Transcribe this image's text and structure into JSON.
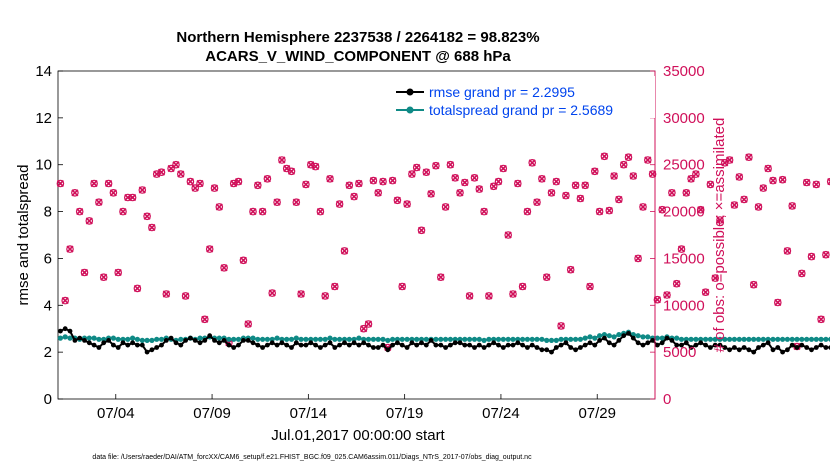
{
  "colors": {
    "rmse": "#000000",
    "spread": "#0f8a86",
    "obs": "#d0105a",
    "legend_text": "#0044ee",
    "axis": "#000000"
  },
  "chart_data": {
    "type": "line",
    "title_line1": "Northern Hemisphere 2237538 / 2264182 = 98.823%",
    "title_line2": "ACARS_V_WIND_COMPONENT @ 688 hPa",
    "ylabel_left": "rmse and totalspread",
    "ylabel_right": "# of obs: o=possible; ×=assimilated",
    "xlabel": "Jul.01,2017 00:00:00 start",
    "footnote": "data file: /Users/raeder/DAI/ATM_forcXX/CAM6_setup/f.e21.FHIST_BGC.f09_025.CAM6assim.011/Diags_NTrS_2017-07/obs_diag_output.nc",
    "xlim": [
      1.0,
      32.0
    ],
    "ylim_left": [
      0,
      14
    ],
    "ylim_right": [
      0,
      35000
    ],
    "left_ticks": [
      "0",
      "2",
      "4",
      "6",
      "8",
      "10",
      "12",
      "14"
    ],
    "left_tick_values": [
      0,
      2,
      4,
      6,
      8,
      10,
      12,
      14
    ],
    "right_ticks": [
      "0",
      "5000",
      "10000",
      "15000",
      "20000",
      "25000",
      "30000",
      "35000"
    ],
    "right_tick_values": [
      0,
      5000,
      10000,
      15000,
      20000,
      25000,
      30000,
      35000
    ],
    "x_ticks": [
      "07/04",
      "07/09",
      "07/14",
      "07/19",
      "07/24",
      "07/29"
    ],
    "x_tick_values": [
      4,
      9,
      14,
      19,
      24,
      29
    ],
    "legend": [
      "rmse grand pr = 2.2995",
      "totalspread grand pr = 2.5689"
    ],
    "legend_location": "top-right",
    "series": [
      {
        "name": "rmse",
        "style": "black line with filled dots",
        "x_start": 1.125,
        "x_step": 0.25,
        "values": [
          2.9,
          3.0,
          2.9,
          2.5,
          2.6,
          2.5,
          2.4,
          2.3,
          2.2,
          2.4,
          2.5,
          2.3,
          2.2,
          2.4,
          2.3,
          2.4,
          2.3,
          2.3,
          2.0,
          2.1,
          2.2,
          2.3,
          2.5,
          2.6,
          2.4,
          2.3,
          2.5,
          2.6,
          2.5,
          2.4,
          2.5,
          2.7,
          2.5,
          2.4,
          2.5,
          2.3,
          2.2,
          2.3,
          2.5,
          2.5,
          2.4,
          2.3,
          2.2,
          2.3,
          2.4,
          2.3,
          2.4,
          2.3,
          2.2,
          2.4,
          2.3,
          2.3,
          2.4,
          2.3,
          2.2,
          2.3,
          2.4,
          2.2,
          2.3,
          2.4,
          2.3,
          2.4,
          2.3,
          2.4,
          2.3,
          2.2,
          2.2,
          2.3,
          2.1,
          2.3,
          2.4,
          2.3,
          2.2,
          2.4,
          2.3,
          2.4,
          2.3,
          2.5,
          2.3,
          2.3,
          2.2,
          2.3,
          2.4,
          2.4,
          2.3,
          2.3,
          2.2,
          2.3,
          2.2,
          2.3,
          2.4,
          2.3,
          2.2,
          2.3,
          2.3,
          2.4,
          2.3,
          2.2,
          2.3,
          2.2,
          2.1,
          2.1,
          2.0,
          2.2,
          2.3,
          2.4,
          2.2,
          2.1,
          2.2,
          2.3,
          2.4,
          2.3,
          2.5,
          2.6,
          2.4,
          2.3,
          2.5,
          2.7,
          2.8,
          2.6,
          2.4,
          2.3,
          2.4,
          2.5,
          2.3,
          2.4,
          2.6,
          2.5,
          2.3,
          2.3,
          2.4,
          2.2,
          2.3,
          2.4,
          2.3,
          2.2,
          2.3,
          2.3,
          2.2,
          2.1,
          2.2,
          2.1,
          2.2,
          2.1,
          2.0,
          2.2,
          2.3,
          2.4,
          2.1,
          2.2,
          2.0,
          2.1,
          2.3,
          2.2,
          2.3,
          2.2,
          2.1,
          2.2,
          2.3,
          2.2,
          2.2,
          2.1,
          2.1,
          2.2,
          2.1,
          2.0,
          2.1,
          2.1,
          2.1,
          2.1,
          2.0,
          2.1,
          2.0,
          2.0,
          2.1,
          2.1
        ]
      },
      {
        "name": "totalspread",
        "style": "teal line with filled dots",
        "x_start": 1.125,
        "x_step": 0.25,
        "values": [
          2.6,
          2.65,
          2.6,
          2.6,
          2.55,
          2.6,
          2.6,
          2.6,
          2.55,
          2.55,
          2.6,
          2.6,
          2.55,
          2.55,
          2.55,
          2.6,
          2.55,
          2.5,
          2.5,
          2.5,
          2.55,
          2.55,
          2.6,
          2.55,
          2.5,
          2.55,
          2.55,
          2.6,
          2.55,
          2.6,
          2.6,
          2.65,
          2.6,
          2.6,
          2.6,
          2.55,
          2.55,
          2.55,
          2.6,
          2.6,
          2.6,
          2.55,
          2.55,
          2.55,
          2.55,
          2.6,
          2.55,
          2.55,
          2.55,
          2.6,
          2.55,
          2.55,
          2.55,
          2.55,
          2.55,
          2.55,
          2.6,
          2.55,
          2.55,
          2.55,
          2.55,
          2.55,
          2.6,
          2.55,
          2.55,
          2.55,
          2.55,
          2.55,
          2.5,
          2.55,
          2.55,
          2.55,
          2.55,
          2.55,
          2.55,
          2.55,
          2.55,
          2.55,
          2.55,
          2.55,
          2.55,
          2.55,
          2.55,
          2.55,
          2.55,
          2.55,
          2.55,
          2.55,
          2.5,
          2.55,
          2.55,
          2.55,
          2.55,
          2.55,
          2.55,
          2.55,
          2.55,
          2.55,
          2.55,
          2.55,
          2.55,
          2.5,
          2.5,
          2.5,
          2.55,
          2.55,
          2.55,
          2.55,
          2.55,
          2.6,
          2.65,
          2.6,
          2.7,
          2.75,
          2.7,
          2.65,
          2.75,
          2.8,
          2.85,
          2.75,
          2.7,
          2.65,
          2.65,
          2.6,
          2.6,
          2.6,
          2.65,
          2.6,
          2.6,
          2.55,
          2.55,
          2.55,
          2.55,
          2.55,
          2.55,
          2.55,
          2.55,
          2.55,
          2.55,
          2.55,
          2.55,
          2.55,
          2.55,
          2.55,
          2.55,
          2.55,
          2.55,
          2.55,
          2.55,
          2.55,
          2.55,
          2.55,
          2.55,
          2.55,
          2.55,
          2.55,
          2.55,
          2.55,
          2.55,
          2.55,
          2.55,
          2.55,
          2.55,
          2.55,
          2.55,
          2.55,
          2.55,
          2.5,
          2.5,
          2.5,
          2.5,
          2.5,
          2.5,
          2.5,
          2.5,
          2.5,
          2.5,
          2.5
        ]
      },
      {
        "name": "obs possible/assimilated",
        "style": "magenta o and x markers on right axis",
        "x_start": 1.125,
        "x_step": 0.25,
        "values": [
          23000,
          10500,
          16000,
          22000,
          20000,
          13500,
          19000,
          23000,
          21000,
          13000,
          23000,
          22000,
          13500,
          20000,
          21500,
          21500,
          11800,
          22300,
          19500,
          18300,
          24000,
          24200,
          11200,
          24600,
          25000,
          24000,
          11000,
          23200,
          22500,
          23000,
          8500,
          16000,
          22500,
          20500,
          14000,
          6000,
          23000,
          23200,
          14800,
          8000,
          20000,
          22800,
          20000,
          23500,
          11300,
          21000,
          25500,
          24600,
          24300,
          21000,
          11200,
          22900,
          25000,
          24800,
          20000,
          11000,
          23500,
          12000,
          20800,
          15800,
          22800,
          21600,
          23000,
          7500,
          8000,
          23300,
          22000,
          23200,
          5500,
          23300,
          21200,
          12000,
          20800,
          24000,
          24700,
          18000,
          24200,
          21900,
          24900,
          13000,
          20500,
          25000,
          23600,
          22000,
          23100,
          11000,
          23600,
          22400,
          20000,
          11000,
          22700,
          23200,
          24600,
          17500,
          11200,
          23000,
          12000,
          20000,
          25200,
          21000,
          23500,
          13000,
          22000,
          23200,
          7800,
          21700,
          13800,
          22800,
          21400,
          22800,
          12000,
          24300,
          20000,
          25900,
          20100,
          23800,
          21300,
          25000,
          25800,
          23800,
          15000,
          20500,
          25500,
          24000,
          10600,
          20200,
          11100,
          22000,
          12300,
          16000,
          22000,
          23500,
          24000,
          20200,
          11400,
          22900,
          12900,
          19100,
          25200,
          25500,
          20700,
          23700,
          21300,
          25800,
          12200,
          20500,
          22500,
          24600,
          23300,
          10300,
          23400,
          15800,
          20600,
          5600,
          13400,
          23100,
          15200,
          22900,
          8500,
          15400,
          23200,
          23300,
          0,
          0
        ]
      }
    ]
  }
}
